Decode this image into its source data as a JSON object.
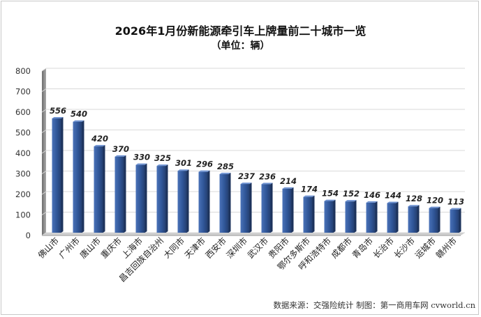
{
  "chart_data": {
    "type": "bar",
    "title": "2026年1月份新能源牵引车上牌量前二十城市一览",
    "subtitle": "（单位：辆）",
    "categories": [
      "佛山市",
      "广州市",
      "唐山市",
      "重庆市",
      "上海市",
      "昌吉回族自治州",
      "大同市",
      "天津市",
      "西安市",
      "深圳市",
      "武汉市",
      "贵阳市",
      "鄂尔多斯市",
      "呼和浩特市",
      "成都市",
      "青岛市",
      "长治市",
      "长沙市",
      "运城市",
      "赣州市"
    ],
    "values": [
      556,
      540,
      420,
      370,
      330,
      325,
      301,
      296,
      285,
      237,
      236,
      214,
      174,
      154,
      152,
      146,
      144,
      128,
      120,
      113
    ],
    "ylim": [
      0,
      800
    ],
    "yticks": [
      "0",
      "100",
      "200",
      "300",
      "400",
      "500",
      "600",
      "700",
      "800"
    ],
    "grid": true,
    "legend": "none",
    "bar_color": "#2f5597"
  },
  "footer": {
    "source": "数据来源：交强险统计 制图：第一商用车网 cvworld.cn"
  }
}
